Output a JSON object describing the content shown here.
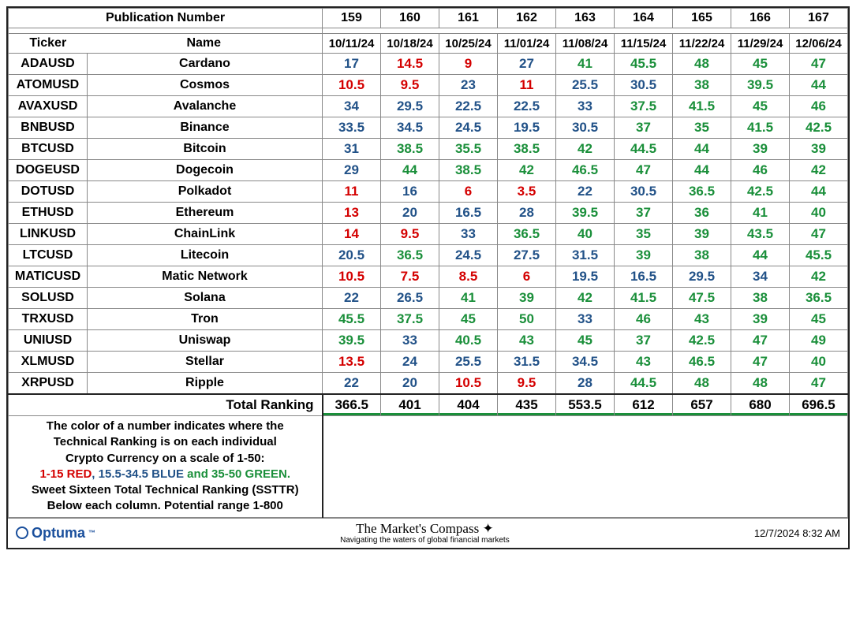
{
  "header": {
    "pub_label": "Publication Number",
    "pub_numbers": [
      "159",
      "160",
      "161",
      "162",
      "163",
      "164",
      "165",
      "166",
      "167"
    ],
    "ticker_head": "Ticker",
    "name_head": "Name",
    "dates": [
      "10/11/24",
      "10/18/24",
      "10/25/24",
      "11/01/24",
      "11/08/24",
      "11/15/24",
      "11/22/24",
      "11/29/24",
      "12/06/24"
    ]
  },
  "thresholds": {
    "red_max": 15,
    "green_min": 35
  },
  "colors": {
    "red": "#d40000",
    "blue": "#225288",
    "green": "#1a8f3a"
  },
  "rows": [
    {
      "ticker": "ADAUSD",
      "name": "Cardano",
      "vals": [
        17,
        14.5,
        9,
        27,
        41,
        45.5,
        48,
        45,
        47
      ]
    },
    {
      "ticker": "ATOMUSD",
      "name": "Cosmos",
      "vals": [
        10.5,
        9.5,
        23,
        11,
        25.5,
        30.5,
        38,
        39.5,
        44
      ]
    },
    {
      "ticker": "AVAXUSD",
      "name": "Avalanche",
      "vals": [
        34,
        29.5,
        22.5,
        22.5,
        33,
        37.5,
        41.5,
        45,
        46
      ]
    },
    {
      "ticker": "BNBUSD",
      "name": "Binance",
      "vals": [
        33.5,
        34.5,
        24.5,
        19.5,
        30.5,
        37,
        35,
        41.5,
        42.5
      ]
    },
    {
      "ticker": "BTCUSD",
      "name": "Bitcoin",
      "vals": [
        31,
        38.5,
        35.5,
        38.5,
        42,
        44.5,
        44,
        39,
        39
      ]
    },
    {
      "ticker": "DOGEUSD",
      "name": "Dogecoin",
      "vals": [
        29,
        44,
        38.5,
        42,
        46.5,
        47,
        44,
        46,
        42
      ]
    },
    {
      "ticker": "DOTUSD",
      "name": "Polkadot",
      "vals": [
        11,
        16,
        6,
        3.5,
        22,
        30.5,
        36.5,
        42.5,
        44
      ]
    },
    {
      "ticker": "ETHUSD",
      "name": "Ethereum",
      "vals": [
        13,
        20,
        16.5,
        28,
        39.5,
        37,
        36,
        41,
        40
      ]
    },
    {
      "ticker": "LINKUSD",
      "name": "ChainLink",
      "vals": [
        14,
        9.5,
        33,
        36.5,
        40,
        35,
        39,
        43.5,
        47
      ]
    },
    {
      "ticker": "LTCUSD",
      "name": "Litecoin",
      "vals": [
        20.5,
        36.5,
        24.5,
        27.5,
        31.5,
        39,
        38,
        44,
        45.5
      ]
    },
    {
      "ticker": "MATICUSD",
      "name": "Matic Network",
      "vals": [
        10.5,
        7.5,
        8.5,
        6,
        19.5,
        16.5,
        29.5,
        34,
        42
      ]
    },
    {
      "ticker": "SOLUSD",
      "name": "Solana",
      "vals": [
        22,
        26.5,
        41,
        39,
        42,
        41.5,
        47.5,
        38,
        36.5
      ]
    },
    {
      "ticker": "TRXUSD",
      "name": "Tron",
      "vals": [
        45.5,
        37.5,
        45,
        50,
        33,
        46,
        43,
        39,
        45
      ]
    },
    {
      "ticker": "UNIUSD",
      "name": "Uniswap",
      "vals": [
        39.5,
        33,
        40.5,
        43,
        45,
        37,
        42.5,
        47,
        49
      ]
    },
    {
      "ticker": "XLMUSD",
      "name": "Stellar",
      "vals": [
        13.5,
        24,
        25.5,
        31.5,
        34.5,
        43,
        46.5,
        47,
        40
      ]
    },
    {
      "ticker": "XRPUSD",
      "name": "Ripple",
      "vals": [
        22,
        20,
        10.5,
        9.5,
        28,
        44.5,
        48,
        48,
        47
      ]
    }
  ],
  "total": {
    "label": "Total Ranking",
    "vals": [
      366.5,
      401,
      404,
      435,
      553.5,
      612,
      657,
      680,
      696.5
    ]
  },
  "legend": {
    "l1": "The color of a number indicates where the",
    "l2": "Technical Ranking is on each individual",
    "l3": "Crypto Currency on a scale of 1-50:",
    "l4a": "1-15 RED",
    "l4b": ", 15.5-34.5 BLUE",
    "l4c": " and 35-50 GREEN.",
    "l5": "Sweet Sixteen Total Technical Ranking (SSTTR)",
    "l6": "Below each column.   Potential range 1-800"
  },
  "footer": {
    "brand": "Optuma",
    "center_title": "The Market's Compass",
    "center_sub": "Navigating the waters of global financial markets",
    "timestamp": "12/7/2024 8:32 AM"
  }
}
